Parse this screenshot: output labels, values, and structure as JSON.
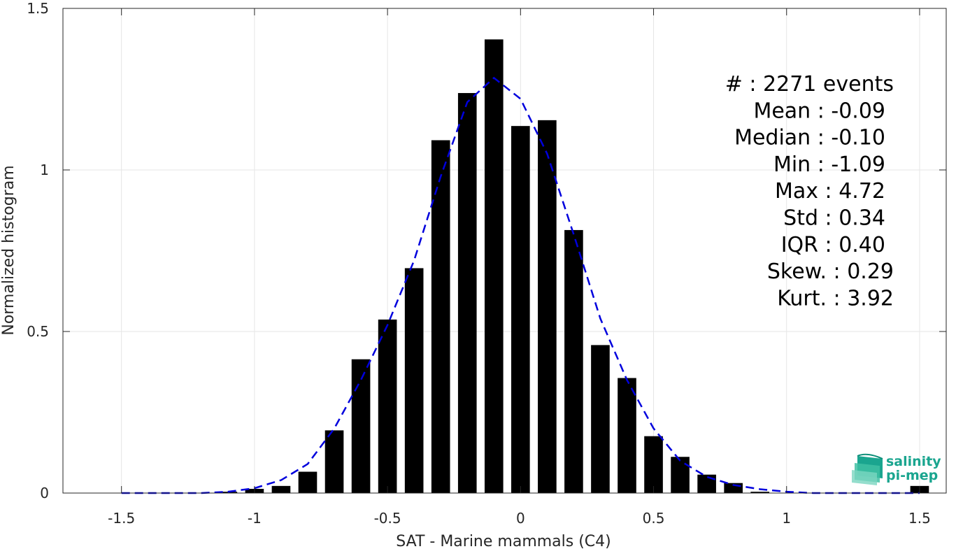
{
  "chart_data": {
    "type": "bar",
    "xlabel": "SAT - Marine mammals (C4)",
    "ylabel": "Normalized histogram",
    "xlim": [
      -1.72,
      1.6
    ],
    "ylim": [
      0,
      1.5
    ],
    "x_ticks": [
      -1.5,
      -1,
      -0.5,
      0,
      0.5,
      1,
      1.5
    ],
    "x_tick_labels": [
      "-1.5",
      "-1",
      "-0.5",
      "0",
      "0.5",
      "1",
      "1.5"
    ],
    "y_ticks": [
      0,
      0.5,
      1,
      1.5
    ],
    "y_tick_labels": [
      "0",
      "0.5",
      "1",
      "1.5"
    ],
    "grid": true,
    "bar_width": 0.07,
    "bar_color": "#000000",
    "bars": {
      "x": [
        -1.1,
        -1.0,
        -0.9,
        -0.8,
        -0.7,
        -0.6,
        -0.5,
        -0.4,
        -0.3,
        -0.2,
        -0.1,
        0.0,
        0.1,
        0.2,
        0.3,
        0.4,
        0.5,
        0.6,
        0.7,
        0.8,
        0.9,
        1.5
      ],
      "values": [
        0.004,
        0.013,
        0.022,
        0.066,
        0.194,
        0.414,
        0.537,
        0.696,
        1.092,
        1.238,
        1.404,
        1.136,
        1.154,
        0.814,
        0.458,
        0.356,
        0.176,
        0.112,
        0.057,
        0.031,
        0.004,
        0.022
      ]
    },
    "fit_curve": {
      "style": "dashed",
      "color": "#0000dd",
      "x": [
        -1.5,
        -1.4,
        -1.3,
        -1.2,
        -1.1,
        -1.0,
        -0.9,
        -0.8,
        -0.7,
        -0.6,
        -0.5,
        -0.4,
        -0.3,
        -0.2,
        -0.1,
        0.0,
        0.1,
        0.2,
        0.3,
        0.4,
        0.5,
        0.6,
        0.7,
        0.8,
        0.9,
        1.0,
        1.1,
        1.2,
        1.3,
        1.4,
        1.5
      ],
      "values": [
        0.0,
        0.0,
        0.0,
        0.0,
        0.004,
        0.015,
        0.04,
        0.09,
        0.2,
        0.35,
        0.52,
        0.72,
        0.98,
        1.21,
        1.285,
        1.22,
        1.05,
        0.8,
        0.54,
        0.35,
        0.2,
        0.1,
        0.05,
        0.025,
        0.012,
        0.004,
        0.0,
        0.0,
        0.0,
        0.0,
        0.0
      ]
    },
    "stats": [
      {
        "label": "#  : 2271 events"
      },
      {
        "label": "Mean : -0.09"
      },
      {
        "label": "Median : -0.10"
      },
      {
        "label": "Min : -1.09"
      },
      {
        "label": "Max : 4.72"
      },
      {
        "label": "Std : 0.34"
      },
      {
        "label": "IQR : 0.40"
      },
      {
        "label": "Skew. : 0.29"
      },
      {
        "label": "Kurt. : 3.92"
      }
    ]
  },
  "logo": {
    "line1": "salinity",
    "line2": "pi-mep",
    "color": "#1aa58f"
  }
}
